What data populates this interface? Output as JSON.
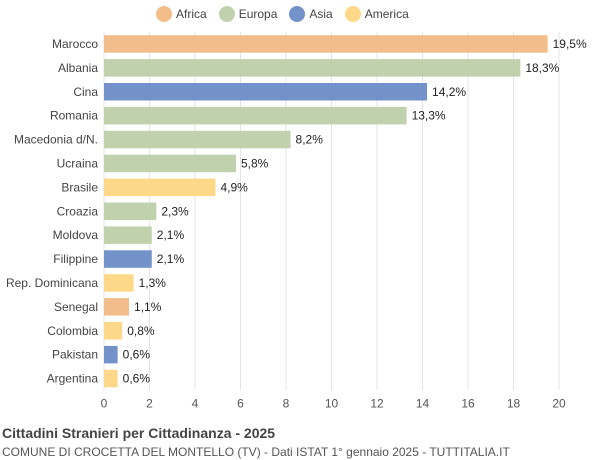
{
  "chart_data": {
    "type": "bar",
    "orientation": "horizontal",
    "title": "Cittadini Stranieri per Cittadinanza - 2025",
    "subtitle": "COMUNE DI CROCETTA DEL MONTELLO (TV) - Dati ISTAT 1° gennaio 2025 - TUTTITALIA.IT",
    "xlim": [
      0,
      20
    ],
    "xticks": [
      0,
      2,
      4,
      6,
      8,
      10,
      12,
      14,
      16,
      18,
      20
    ],
    "grid": true,
    "legend_position": "top",
    "legend": [
      {
        "name": "Africa",
        "color": "#f2bd8a"
      },
      {
        "name": "Europa",
        "color": "#bfd1ad"
      },
      {
        "name": "Asia",
        "color": "#7392c9"
      },
      {
        "name": "America",
        "color": "#fdd888"
      }
    ],
    "categories": [
      "Marocco",
      "Albania",
      "Cina",
      "Romania",
      "Macedonia d/N.",
      "Ucraina",
      "Brasile",
      "Croazia",
      "Moldova",
      "Filippine",
      "Rep. Dominicana",
      "Senegal",
      "Colombia",
      "Pakistan",
      "Argentina"
    ],
    "values": [
      19.5,
      18.3,
      14.2,
      13.3,
      8.2,
      5.8,
      4.9,
      2.3,
      2.1,
      2.1,
      1.3,
      1.1,
      0.8,
      0.6,
      0.6
    ],
    "value_labels": [
      "19,5%",
      "18,3%",
      "14,2%",
      "13,3%",
      "8,2%",
      "5,8%",
      "4,9%",
      "2,3%",
      "2,1%",
      "2,1%",
      "1,3%",
      "1,1%",
      "0,8%",
      "0,6%",
      "0,6%"
    ],
    "groups": [
      "Africa",
      "Europa",
      "Asia",
      "Europa",
      "Europa",
      "Europa",
      "America",
      "Europa",
      "Europa",
      "Asia",
      "America",
      "Africa",
      "America",
      "Asia",
      "America"
    ]
  }
}
